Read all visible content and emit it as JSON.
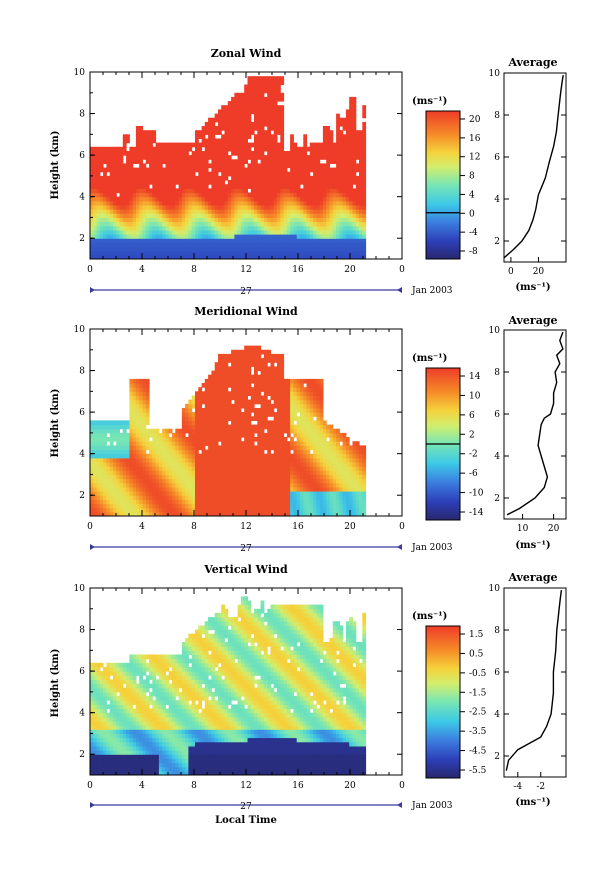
{
  "figure": {
    "date_label": "Jan 2003",
    "xlabel": "Local Time",
    "day_label": "27"
  },
  "chart_data": [
    {
      "type": "heatmap",
      "title": "Zonal Wind",
      "ylabel": "Height (km)",
      "xlabel": "Local Time",
      "x_ticks": [
        "0",
        "4",
        "8",
        "12",
        "16",
        "20",
        "0"
      ],
      "xlim": [
        0,
        24
      ],
      "ylim": [
        1,
        10
      ],
      "y_ticks": [
        "2",
        "4",
        "6",
        "8",
        "10"
      ],
      "colorbar": {
        "unit": "(ms⁻¹)",
        "ticks": [
          "20",
          "16",
          "12",
          "8",
          "4",
          "0",
          "-4",
          "-8"
        ],
        "range": [
          -10,
          22
        ],
        "zero_contour": 0
      },
      "data_extent_hours": [
        0,
        21.2
      ],
      "description_values": {
        "low_levels_below_2km": -6,
        "mid_levels": 12,
        "upper_levels": 20
      }
    },
    {
      "type": "line",
      "title": "Average",
      "xlabel": "(ms⁻¹)",
      "x_ticks": [
        "0",
        "20"
      ],
      "xlim": [
        -5,
        40
      ],
      "ylim": [
        1,
        10
      ],
      "y_ticks": [
        "2",
        "4",
        "6",
        "8",
        "10"
      ],
      "x": [
        -5,
        2,
        8,
        13,
        16,
        18,
        20,
        25,
        28,
        31,
        33,
        34,
        35,
        36,
        37,
        38
      ],
      "y": [
        1.2,
        1.6,
        2.0,
        2.5,
        3.0,
        3.5,
        4.2,
        5.0,
        5.8,
        6.5,
        7.2,
        7.8,
        8.4,
        9.0,
        9.5,
        9.9
      ]
    },
    {
      "type": "heatmap",
      "title": "Meridional Wind",
      "ylabel": "Height (km)",
      "xlabel": "Local Time",
      "x_ticks": [
        "0",
        "4",
        "8",
        "12",
        "16",
        "20",
        "0"
      ],
      "xlim": [
        0,
        24
      ],
      "ylim": [
        1,
        10
      ],
      "y_ticks": [
        "2",
        "4",
        "6",
        "8",
        "10"
      ],
      "colorbar": {
        "unit": "(ms⁻¹)",
        "ticks": [
          "14",
          "10",
          "6",
          "2",
          "-2",
          "-6",
          "-10",
          "-14"
        ],
        "range": [
          -16,
          16
        ],
        "zero_contour": 0
      },
      "data_extent_hours": [
        0,
        21.2
      ],
      "description_values": {
        "core_daytime": 14,
        "low_level_afternoon": -4
      }
    },
    {
      "type": "line",
      "title": "Average",
      "xlabel": "(ms⁻¹)",
      "x_ticks": [
        "10",
        "20"
      ],
      "xlim": [
        4,
        24
      ],
      "ylim": [
        1,
        10
      ],
      "y_ticks": [
        "2",
        "4",
        "6",
        "8",
        "10"
      ],
      "x": [
        5,
        9,
        14,
        17,
        18,
        17,
        16,
        15,
        15.5,
        16,
        17,
        19,
        20,
        20,
        21,
        20.5,
        22,
        21,
        23,
        22,
        23
      ],
      "y": [
        1.2,
        1.5,
        2.0,
        2.5,
        3.0,
        3.5,
        4.0,
        4.5,
        5.0,
        5.5,
        5.8,
        6.0,
        6.5,
        7.0,
        7.5,
        8.0,
        8.4,
        8.8,
        9.1,
        9.5,
        9.9
      ]
    },
    {
      "type": "heatmap",
      "title": "Vertical Wind",
      "ylabel": "Height (km)",
      "xlabel": "Local Time",
      "x_ticks": [
        "0",
        "4",
        "8",
        "12",
        "16",
        "20",
        "0"
      ],
      "xlim": [
        0,
        24
      ],
      "ylim": [
        1,
        10
      ],
      "y_ticks": [
        "2",
        "4",
        "6",
        "8",
        "10"
      ],
      "colorbar": {
        "unit": "(ms⁻¹)",
        "ticks": [
          "1.5",
          "0.5",
          "-0.5",
          "-1.5",
          "-2.5",
          "-3.5",
          "-4.5",
          "-5.5"
        ],
        "range": [
          -6,
          2
        ]
      },
      "data_extent_hours": [
        0,
        21.2
      ],
      "description_values": {
        "lowest_layer": -5.5,
        "upper_layers": -1.0
      }
    },
    {
      "type": "line",
      "title": "Average",
      "xlabel": "(ms⁻¹)",
      "x_ticks": [
        "-4",
        "-2"
      ],
      "xlim": [
        -5.2,
        0.2
      ],
      "ylim": [
        1,
        10
      ],
      "y_ticks": [
        "2",
        "4",
        "6",
        "8",
        "10"
      ],
      "x": [
        -5.0,
        -4.8,
        -4.0,
        -3.0,
        -2.0,
        -1.5,
        -1.1,
        -0.9,
        -0.9,
        -0.7,
        -0.6,
        -0.5,
        -0.4,
        -0.3,
        -0.2
      ],
      "y": [
        1.3,
        1.8,
        2.3,
        2.6,
        2.9,
        3.4,
        4.0,
        5.0,
        6.0,
        7.0,
        8.0,
        8.5,
        9.0,
        9.5,
        9.9
      ]
    }
  ]
}
